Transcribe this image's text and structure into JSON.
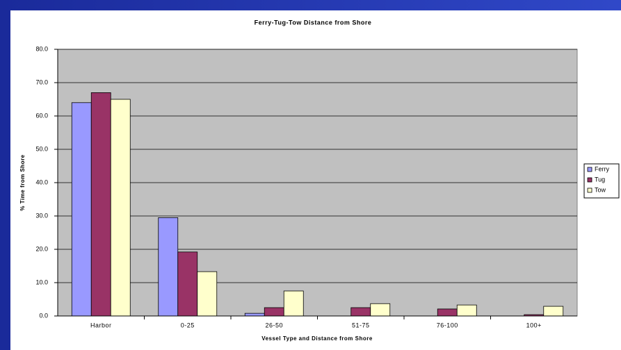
{
  "chart_data": {
    "type": "bar",
    "title": "Ferry-Tug-Tow Distance from Shore",
    "xlabel": "Vessel Type and Distance from Shore",
    "ylabel": "% Time from Shore",
    "categories": [
      "Harbor",
      "0-25",
      "26-50",
      "51-75",
      "76-100",
      "100+"
    ],
    "series": [
      {
        "name": "Ferry",
        "color": "#9999ff",
        "values": [
          64,
          29.5,
          0.8,
          0,
          0,
          0
        ]
      },
      {
        "name": "Tug",
        "color": "#993366",
        "values": [
          67,
          19.2,
          2.5,
          2.5,
          2.1,
          0.4
        ]
      },
      {
        "name": "Tow",
        "color": "#ffffcc",
        "values": [
          65,
          13.3,
          7.5,
          3.7,
          3.3,
          2.9
        ]
      }
    ],
    "ylim": [
      0,
      80
    ],
    "yticks": [
      {
        "value": 0,
        "label": "0.0"
      },
      {
        "value": 10,
        "label": "10.0"
      },
      {
        "value": 20,
        "label": "20.0"
      },
      {
        "value": 30,
        "label": "30.0"
      },
      {
        "value": 40,
        "label": "40.0"
      },
      {
        "value": 50,
        "label": "50.0"
      },
      {
        "value": 60,
        "label": "60.0"
      },
      {
        "value": 70,
        "label": "70.0"
      },
      {
        "value": 80,
        "label": "80.0"
      }
    ],
    "grid": true,
    "legend": "right"
  }
}
